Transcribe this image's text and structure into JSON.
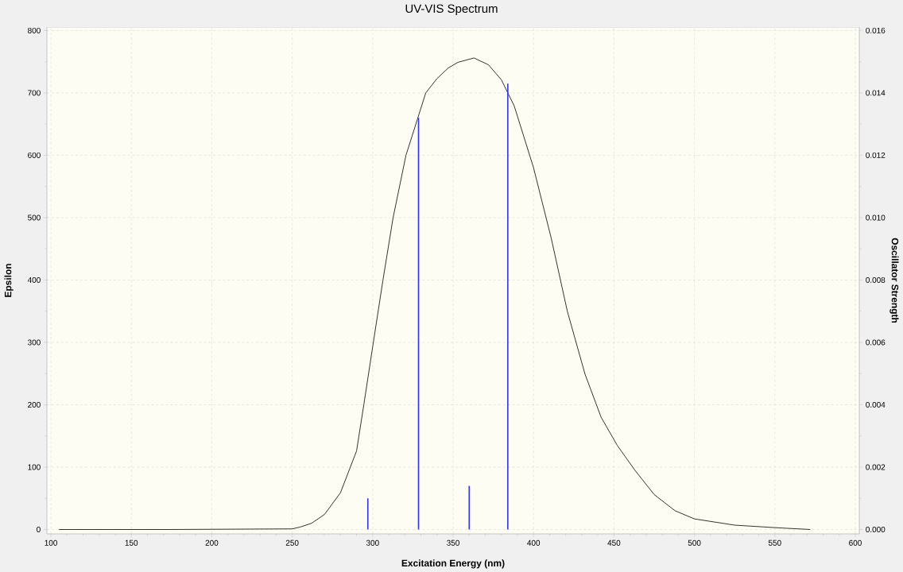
{
  "chart_data": {
    "type": "line",
    "title": "UV-VIS Spectrum",
    "xlabel": "Excitation Energy (nm)",
    "ylabel": "Epsilon",
    "y2label": "Oscillator Strength",
    "xlim": [
      97.5,
      602.5
    ],
    "xticks": [
      100,
      150,
      200,
      250,
      300,
      350,
      400,
      450,
      500,
      550,
      600
    ],
    "ylim": [
      -7,
      805
    ],
    "yticks": [
      0,
      100,
      200,
      300,
      400,
      500,
      600,
      700,
      800
    ],
    "y2lim": [
      -0.00014,
      0.0161
    ],
    "y2ticks": [
      {
        "value": 0,
        "label": "0.000"
      },
      {
        "value": 0.002,
        "label": "0.002"
      },
      {
        "value": 0.004,
        "label": "0.004"
      },
      {
        "value": 0.006,
        "label": "0.006"
      },
      {
        "value": 0.008,
        "label": "0.008"
      },
      {
        "value": 0.01,
        "label": "0.010"
      },
      {
        "value": 0.012,
        "label": "0.012"
      },
      {
        "value": 0.014,
        "label": "0.014"
      },
      {
        "value": 0.016,
        "label": "0.016"
      }
    ],
    "grid": true,
    "series": [
      {
        "color": "#000000",
        "x": [
          105,
          175,
          250,
          255,
          262,
          270,
          280,
          290,
          294.5,
          300,
          306.4,
          312.7,
          320.7,
          333,
          340,
          347,
          353,
          363,
          372,
          380,
          388,
          400,
          411,
          421,
          432,
          442,
          452,
          463,
          475,
          488,
          500,
          525,
          550,
          572
        ],
        "values": [
          0,
          0,
          1,
          4,
          10,
          24,
          59,
          126,
          200,
          293,
          400,
          500,
          600,
          700,
          723,
          740,
          749,
          756,
          745,
          721,
          679,
          580,
          467,
          350,
          249,
          180,
          135,
          95,
          56,
          30,
          17,
          7,
          3,
          0
        ]
      },
      {
        "type": "bar",
        "axis": "y2",
        "colors": [
          "#3333ff",
          "#3333ff",
          "#3333ff",
          "#3333ff"
        ],
        "x": [
          297,
          328.5,
          360,
          384
        ],
        "values": [
          0.001,
          0.0132,
          0.0014,
          0.0143
        ]
      }
    ]
  }
}
